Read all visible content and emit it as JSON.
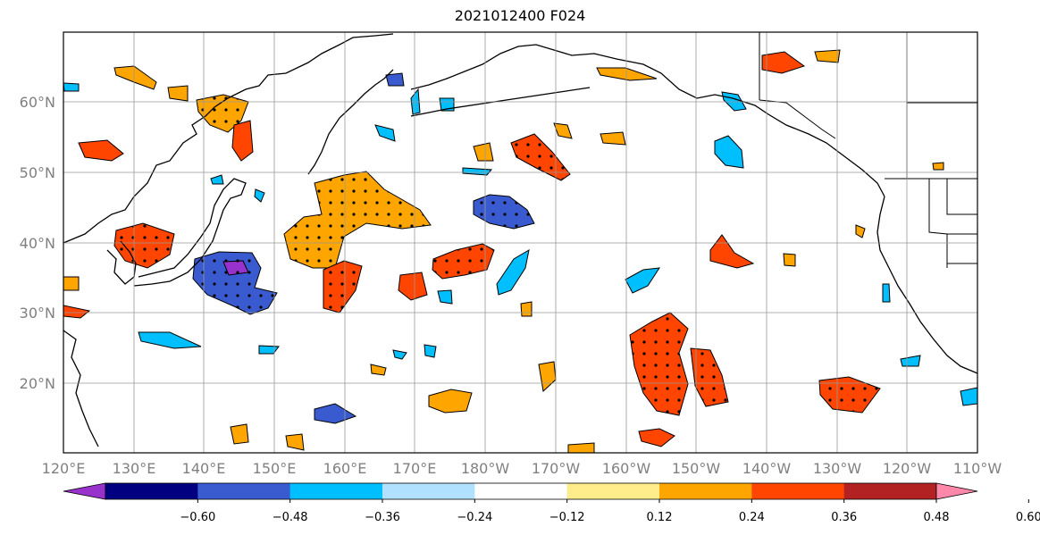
{
  "title": "2021012400 F024",
  "map": {
    "lat_labels": [
      "60°N",
      "50°N",
      "40°N",
      "30°N",
      "20°N"
    ],
    "lon_labels": [
      "120°E",
      "130°E",
      "140°E",
      "150°E",
      "160°E",
      "170°E",
      "180°W",
      "170°W",
      "160°W",
      "150°W",
      "140°W",
      "130°W",
      "120°W",
      "110°W"
    ],
    "grid": true
  },
  "colorbar": {
    "colors": [
      "#9932cc",
      "#000080",
      "#3a5bd0",
      "#00bfff",
      "#b0e2ff",
      "#ffffff",
      "#ffec8b",
      "#ffa500",
      "#ff4500",
      "#b22222",
      "#ff88aa"
    ],
    "tick_labels": [
      "−0.60",
      "−0.48",
      "−0.36",
      "−0.24",
      "−0.12",
      "0.12",
      "0.24",
      "0.36",
      "0.48",
      "0.60"
    ]
  }
}
